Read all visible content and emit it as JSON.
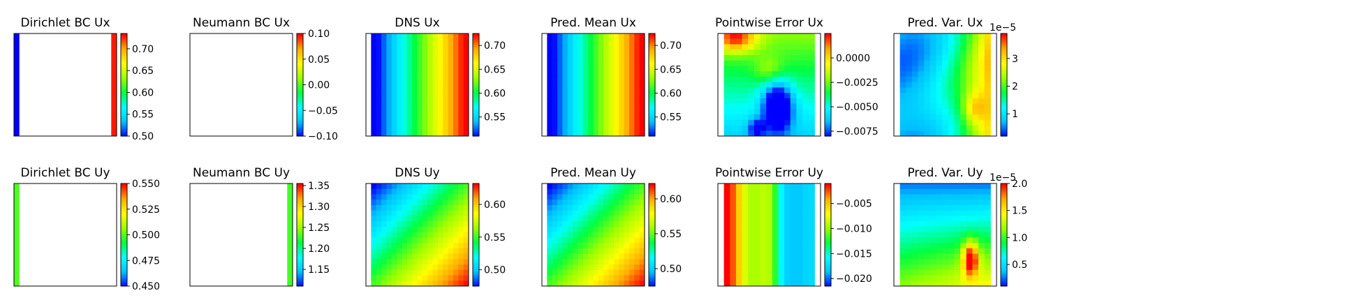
{
  "figure": {
    "colormap": [
      "#0000ff",
      "#00bfff",
      "#00ffff",
      "#00ff40",
      "#9bff00",
      "#ffff00",
      "#ffaa00",
      "#ff0000"
    ],
    "rows": 2,
    "cols": 6
  },
  "chart_data": [
    {
      "type": "heatmap",
      "title": "Dirichlet BC Ux",
      "pattern": "left-right-edges",
      "grid": [
        19,
        19
      ],
      "edge_values": {
        "left": 0.5,
        "right": 0.73
      },
      "clim": [
        0.5,
        0.735
      ],
      "colorbar_ticks": [
        "0.70",
        "0.65",
        "0.60",
        "0.55",
        "0.50"
      ],
      "colorbar_tick_values": [
        0.7,
        0.65,
        0.6,
        0.55,
        0.5
      ],
      "multiplier": ""
    },
    {
      "type": "heatmap",
      "title": "Neumann BC Ux",
      "pattern": "empty",
      "grid": [
        19,
        19
      ],
      "clim": [
        -0.1,
        0.1
      ],
      "colorbar_ticks": [
        "0.10",
        "0.05",
        "0.00",
        "−0.05",
        "−0.10"
      ],
      "colorbar_tick_values": [
        0.1,
        0.05,
        0.0,
        -0.05,
        -0.1
      ],
      "multiplier": ""
    },
    {
      "type": "heatmap",
      "title": "DNS Ux",
      "pattern": "linear-x",
      "grid": [
        19,
        19
      ],
      "value_range": [
        0.5,
        0.73
      ],
      "clim": [
        0.51,
        0.725
      ],
      "colorbar_ticks": [
        "0.70",
        "0.65",
        "0.60",
        "0.55"
      ],
      "colorbar_tick_values": [
        0.7,
        0.65,
        0.6,
        0.55
      ],
      "multiplier": ""
    },
    {
      "type": "heatmap",
      "title": "Pred. Mean Ux",
      "pattern": "linear-x",
      "grid": [
        19,
        19
      ],
      "value_range": [
        0.5,
        0.73
      ],
      "clim": [
        0.51,
        0.725
      ],
      "colorbar_ticks": [
        "0.70",
        "0.65",
        "0.60",
        "0.55"
      ],
      "colorbar_tick_values": [
        0.7,
        0.65,
        0.6,
        0.55
      ],
      "multiplier": ""
    },
    {
      "type": "heatmap",
      "title": "Pointwise Error Ux",
      "pattern": "error-ux",
      "grid": [
        15,
        19
      ],
      "clim": [
        -0.008,
        0.0025
      ],
      "colorbar_ticks": [
        "0.0000",
        "−0.0025",
        "−0.0050",
        "−0.0075"
      ],
      "colorbar_tick_values": [
        0.0,
        -0.0025,
        -0.005,
        -0.0075
      ],
      "multiplier": ""
    },
    {
      "type": "heatmap",
      "title": "Pred. Var. Ux",
      "pattern": "var-ux",
      "grid": [
        15,
        19
      ],
      "clim": [
        0.2,
        3.9
      ],
      "colorbar_ticks": [
        "3",
        "2",
        "1"
      ],
      "colorbar_tick_values": [
        3,
        2,
        1
      ],
      "multiplier": "1e−5"
    },
    {
      "type": "heatmap",
      "title": "Dirichlet BC Uy",
      "pattern": "left-edge",
      "grid": [
        19,
        19
      ],
      "edge_values": {
        "left": 0.5
      },
      "clim": [
        0.45,
        0.55
      ],
      "colorbar_ticks": [
        "0.550",
        "0.525",
        "0.500",
        "0.475",
        "0.450"
      ],
      "colorbar_tick_values": [
        0.55,
        0.525,
        0.5,
        0.475,
        0.45
      ],
      "multiplier": ""
    },
    {
      "type": "heatmap",
      "title": "Neumann BC Uy",
      "pattern": "right-edge",
      "grid": [
        19,
        19
      ],
      "edge_values": {
        "right": 1.23
      },
      "clim": [
        1.11,
        1.355
      ],
      "colorbar_ticks": [
        "1.35",
        "1.30",
        "1.25",
        "1.20",
        "1.15"
      ],
      "colorbar_tick_values": [
        1.35,
        1.3,
        1.25,
        1.2,
        1.15
      ],
      "multiplier": ""
    },
    {
      "type": "heatmap",
      "title": "DNS Uy",
      "pattern": "diagonal",
      "grid": [
        19,
        19
      ],
      "value_range": [
        0.475,
        0.63
      ],
      "clim": [
        0.475,
        0.632
      ],
      "colorbar_ticks": [
        "0.60",
        "0.55",
        "0.50"
      ],
      "colorbar_tick_values": [
        0.6,
        0.55,
        0.5
      ],
      "multiplier": ""
    },
    {
      "type": "heatmap",
      "title": "Pred. Mean Uy",
      "pattern": "diagonal",
      "grid": [
        19,
        19
      ],
      "value_range": [
        0.475,
        0.62
      ],
      "clim": [
        0.475,
        0.622
      ],
      "colorbar_ticks": [
        "0.60",
        "0.55",
        "0.50"
      ],
      "colorbar_tick_values": [
        0.6,
        0.55,
        0.5
      ],
      "multiplier": ""
    },
    {
      "type": "heatmap",
      "title": "Pointwise Error Uy",
      "pattern": "error-uy",
      "grid": [
        15,
        19
      ],
      "clim": [
        -0.0215,
        -0.001
      ],
      "colorbar_ticks": [
        "−0.005",
        "−0.010",
        "−0.015",
        "−0.020"
      ],
      "colorbar_tick_values": [
        -0.005,
        -0.01,
        -0.015,
        -0.02
      ],
      "multiplier": ""
    },
    {
      "type": "heatmap",
      "title": "Pred. Var. Uy",
      "pattern": "var-uy",
      "grid": [
        15,
        19
      ],
      "clim": [
        0.1,
        2.0
      ],
      "colorbar_ticks": [
        "2.0",
        "1.5",
        "1.0",
        "0.5"
      ],
      "colorbar_tick_values": [
        2.0,
        1.5,
        1.0,
        0.5
      ],
      "multiplier": "1e−5"
    }
  ]
}
